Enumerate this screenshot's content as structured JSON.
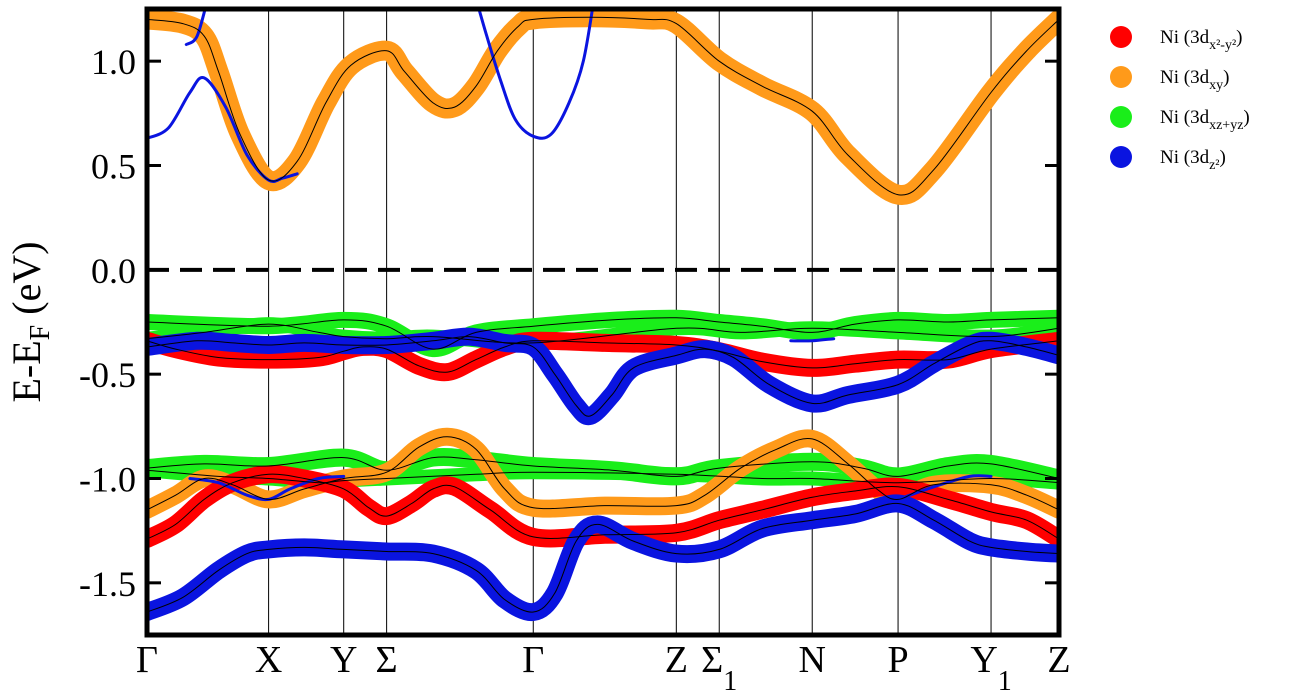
{
  "chart_data": {
    "type": "line",
    "ylabel": "E-E_F (eV)",
    "ylabel_parts": {
      "main": "E-E",
      "sub": "F",
      "tail": " (eV)"
    },
    "ylim": [
      -1.75,
      1.25
    ],
    "xlim": [
      0,
      12.75
    ],
    "yticks": [
      1.0,
      0.5,
      0.0,
      -0.5,
      -1.0,
      -1.5
    ],
    "ytick_labels": [
      "1.0",
      "0.5",
      "0.0",
      "-0.5",
      "-1.0",
      "-1.5"
    ],
    "kpoints": [
      {
        "x": 0.0,
        "label": "Γ",
        "sub": ""
      },
      {
        "x": 1.7,
        "label": "X",
        "sub": ""
      },
      {
        "x": 2.75,
        "label": "Y",
        "sub": ""
      },
      {
        "x": 3.35,
        "label": "Σ",
        "sub": ""
      },
      {
        "x": 5.4,
        "label": "Γ",
        "sub": ""
      },
      {
        "x": 7.4,
        "label": "Z",
        "sub": ""
      },
      {
        "x": 8.0,
        "label": "Σ",
        "sub": "1"
      },
      {
        "x": 9.3,
        "label": "N",
        "sub": ""
      },
      {
        "x": 10.5,
        "label": "P",
        "sub": ""
      },
      {
        "x": 11.8,
        "label": "Y",
        "sub": "1"
      },
      {
        "x": 12.75,
        "label": "Z",
        "sub": ""
      }
    ],
    "fermi_level": 0.0,
    "fermi_style": "dashed",
    "legend_position": "outside-right",
    "series": [
      {
        "name": "Ni (3dx²-y²)",
        "color": "#ff0000",
        "legend": {
          "pre": "Ni (3d",
          "sub": "x²-y²",
          "post": ")"
        }
      },
      {
        "name": "Ni (3dxy)",
        "color": "#ff9a1a",
        "legend": {
          "pre": "Ni (3d",
          "sub": "xy",
          "post": ")"
        }
      },
      {
        "name": "Ni (3dxz+yz)",
        "color": "#1aee1a",
        "legend": {
          "pre": "Ni (3d",
          "sub": "xz+yz",
          "post": ")"
        }
      },
      {
        "name": "Ni (3dz²)",
        "color": "#0a14e0",
        "legend": {
          "pre": "Ni (3d",
          "sub": "z²",
          "post": ")"
        }
      }
    ],
    "bands": [
      {
        "color": "#ff9a1a",
        "width": 20,
        "points": [
          [
            0,
            1.2
          ],
          [
            0.5,
            1.18
          ],
          [
            0.8,
            1.12
          ],
          [
            1.0,
            0.95
          ],
          [
            1.3,
            0.65
          ],
          [
            1.7,
            0.43
          ],
          [
            2.1,
            0.52
          ],
          [
            2.5,
            0.8
          ],
          [
            2.85,
            0.98
          ],
          [
            3.35,
            1.05
          ],
          [
            3.6,
            0.95
          ],
          [
            4.0,
            0.8
          ],
          [
            4.3,
            0.78
          ],
          [
            4.6,
            0.88
          ],
          [
            4.9,
            1.05
          ],
          [
            5.2,
            1.17
          ],
          [
            5.4,
            1.2
          ],
          [
            6.2,
            1.21
          ],
          [
            7.0,
            1.2
          ],
          [
            7.4,
            1.18
          ],
          [
            8.0,
            1.0
          ],
          [
            8.6,
            0.88
          ],
          [
            9.3,
            0.76
          ],
          [
            9.8,
            0.55
          ],
          [
            10.5,
            0.36
          ],
          [
            11.0,
            0.48
          ],
          [
            11.8,
            0.85
          ],
          [
            12.3,
            1.05
          ],
          [
            12.75,
            1.2
          ]
        ]
      },
      {
        "color": "#0a14e0",
        "width": 3,
        "points": [
          [
            0,
            0.63
          ],
          [
            0.3,
            0.68
          ],
          [
            0.6,
            0.85
          ],
          [
            0.8,
            0.92
          ],
          [
            1.1,
            0.78
          ],
          [
            1.4,
            0.55
          ],
          [
            1.7,
            0.43
          ],
          [
            1.9,
            0.44
          ],
          [
            2.1,
            0.46
          ]
        ]
      },
      {
        "color": "#0a14e0",
        "width": 3,
        "points": [
          [
            0.55,
            1.08
          ],
          [
            0.7,
            1.12
          ],
          [
            0.85,
            1.3
          ]
        ]
      },
      {
        "color": "#0a14e0",
        "width": 3,
        "points": [
          [
            4.6,
            1.3
          ],
          [
            4.75,
            1.12
          ],
          [
            4.95,
            0.9
          ],
          [
            5.15,
            0.72
          ],
          [
            5.4,
            0.64
          ],
          [
            5.65,
            0.65
          ],
          [
            5.9,
            0.8
          ],
          [
            6.1,
            1.0
          ],
          [
            6.25,
            1.3
          ]
        ]
      },
      {
        "color": "#1aee1a",
        "width": 16,
        "points": [
          [
            0,
            -0.25
          ],
          [
            1.7,
            -0.27
          ],
          [
            2.75,
            -0.24
          ],
          [
            3.35,
            -0.27
          ],
          [
            4.0,
            -0.38
          ],
          [
            4.6,
            -0.3
          ],
          [
            5.4,
            -0.27
          ],
          [
            6.5,
            -0.24
          ],
          [
            7.4,
            -0.23
          ],
          [
            8.0,
            -0.25
          ],
          [
            8.6,
            -0.27
          ],
          [
            9.3,
            -0.3
          ],
          [
            9.9,
            -0.26
          ],
          [
            10.5,
            -0.24
          ],
          [
            11.2,
            -0.25
          ],
          [
            11.8,
            -0.24
          ],
          [
            12.75,
            -0.23
          ]
        ]
      },
      {
        "color": "#1aee1a",
        "width": 14,
        "points": [
          [
            0,
            -0.33
          ],
          [
            0.8,
            -0.3
          ],
          [
            1.7,
            -0.26
          ],
          [
            2.4,
            -0.3
          ],
          [
            2.75,
            -0.32
          ],
          [
            3.35,
            -0.33
          ],
          [
            4.0,
            -0.32
          ],
          [
            5.4,
            -0.35
          ],
          [
            7.4,
            -0.28
          ],
          [
            8.3,
            -0.3
          ],
          [
            9.3,
            -0.28
          ],
          [
            10.5,
            -0.3
          ],
          [
            11.8,
            -0.32
          ],
          [
            12.75,
            -0.28
          ]
        ]
      },
      {
        "color": "#ff0000",
        "width": 18,
        "points": [
          [
            0,
            -0.34
          ],
          [
            0.4,
            -0.38
          ],
          [
            1.0,
            -0.42
          ],
          [
            1.7,
            -0.43
          ],
          [
            2.4,
            -0.42
          ],
          [
            2.75,
            -0.39
          ],
          [
            3.0,
            -0.37
          ],
          [
            3.35,
            -0.38
          ],
          [
            3.8,
            -0.46
          ],
          [
            4.2,
            -0.49
          ],
          [
            4.6,
            -0.43
          ],
          [
            5.0,
            -0.37
          ],
          [
            5.4,
            -0.34
          ],
          [
            6.4,
            -0.35
          ],
          [
            7.4,
            -0.36
          ],
          [
            8.0,
            -0.39
          ],
          [
            8.6,
            -0.44
          ],
          [
            9.3,
            -0.47
          ],
          [
            9.9,
            -0.45
          ],
          [
            10.5,
            -0.43
          ],
          [
            11.2,
            -0.43
          ],
          [
            11.8,
            -0.38
          ],
          [
            12.75,
            -0.34
          ]
        ]
      },
      {
        "color": "#0a14e0",
        "width": 18,
        "points": [
          [
            0,
            -0.37
          ],
          [
            0.7,
            -0.34
          ],
          [
            1.2,
            -0.35
          ],
          [
            1.7,
            -0.36
          ],
          [
            2.2,
            -0.35
          ],
          [
            2.75,
            -0.36
          ],
          [
            3.35,
            -0.36
          ],
          [
            4.0,
            -0.34
          ],
          [
            4.5,
            -0.32
          ],
          [
            5.0,
            -0.35
          ],
          [
            5.4,
            -0.37
          ],
          [
            5.7,
            -0.5
          ],
          [
            6.0,
            -0.65
          ],
          [
            6.2,
            -0.7
          ],
          [
            6.5,
            -0.6
          ],
          [
            6.8,
            -0.47
          ],
          [
            7.4,
            -0.41
          ],
          [
            7.8,
            -0.38
          ],
          [
            8.2,
            -0.42
          ],
          [
            8.7,
            -0.55
          ],
          [
            9.3,
            -0.64
          ],
          [
            9.8,
            -0.6
          ],
          [
            10.5,
            -0.55
          ],
          [
            11.0,
            -0.45
          ],
          [
            11.5,
            -0.36
          ],
          [
            11.8,
            -0.34
          ],
          [
            12.3,
            -0.37
          ],
          [
            12.75,
            -0.41
          ]
        ]
      },
      {
        "color": "#1aee1a",
        "width": 18,
        "points": [
          [
            0,
            -0.95
          ],
          [
            0.8,
            -0.93
          ],
          [
            1.7,
            -0.94
          ],
          [
            2.75,
            -0.9
          ],
          [
            3.35,
            -0.96
          ],
          [
            4.0,
            -0.9
          ],
          [
            4.6,
            -0.91
          ],
          [
            5.4,
            -0.94
          ],
          [
            6.5,
            -0.96
          ],
          [
            7.4,
            -0.99
          ],
          [
            8.0,
            -0.95
          ],
          [
            9.3,
            -0.92
          ],
          [
            10.0,
            -0.95
          ],
          [
            10.5,
            -0.99
          ],
          [
            11.2,
            -0.94
          ],
          [
            11.8,
            -0.93
          ],
          [
            12.75,
            -1.0
          ]
        ]
      },
      {
        "color": "#1aee1a",
        "width": 14,
        "points": [
          [
            0,
            -0.96
          ],
          [
            1.0,
            -0.99
          ],
          [
            1.7,
            -1.0
          ],
          [
            2.4,
            -1.02
          ],
          [
            2.75,
            -1.01
          ],
          [
            3.35,
            -1.0
          ],
          [
            4.6,
            -0.98
          ],
          [
            5.4,
            -0.97
          ],
          [
            7.4,
            -0.98
          ],
          [
            8.6,
            -1.0
          ],
          [
            9.3,
            -1.0
          ],
          [
            10.5,
            -1.02
          ],
          [
            11.8,
            -1.0
          ],
          [
            12.75,
            -1.02
          ]
        ]
      },
      {
        "color": "#ff9a1a",
        "width": 18,
        "points": [
          [
            0,
            -1.15
          ],
          [
            0.4,
            -1.08
          ],
          [
            0.8,
            -1.0
          ],
          [
            1.2,
            -1.03
          ],
          [
            1.7,
            -1.1
          ],
          [
            2.2,
            -1.05
          ],
          [
            2.75,
            -1.0
          ],
          [
            3.35,
            -0.97
          ],
          [
            3.8,
            -0.85
          ],
          [
            4.2,
            -0.8
          ],
          [
            4.6,
            -0.86
          ],
          [
            5.0,
            -1.05
          ],
          [
            5.4,
            -1.14
          ],
          [
            6.4,
            -1.13
          ],
          [
            7.4,
            -1.13
          ],
          [
            7.8,
            -1.08
          ],
          [
            8.3,
            -0.95
          ],
          [
            8.8,
            -0.86
          ],
          [
            9.3,
            -0.81
          ],
          [
            9.8,
            -0.93
          ],
          [
            10.2,
            -1.05
          ],
          [
            10.5,
            -1.1
          ],
          [
            11.0,
            -1.03
          ],
          [
            11.8,
            -1.03
          ],
          [
            12.3,
            -1.08
          ],
          [
            12.75,
            -1.15
          ]
        ]
      },
      {
        "color": "#ff0000",
        "width": 18,
        "points": [
          [
            0,
            -1.29
          ],
          [
            0.4,
            -1.22
          ],
          [
            0.8,
            -1.1
          ],
          [
            1.2,
            -1.02
          ],
          [
            1.7,
            -0.98
          ],
          [
            2.2,
            -1.0
          ],
          [
            2.75,
            -1.05
          ],
          [
            3.1,
            -1.14
          ],
          [
            3.35,
            -1.18
          ],
          [
            3.7,
            -1.12
          ],
          [
            4.0,
            -1.05
          ],
          [
            4.3,
            -1.04
          ],
          [
            4.8,
            -1.15
          ],
          [
            5.4,
            -1.28
          ],
          [
            6.4,
            -1.27
          ],
          [
            7.4,
            -1.26
          ],
          [
            8.0,
            -1.2
          ],
          [
            8.6,
            -1.15
          ],
          [
            9.3,
            -1.09
          ],
          [
            9.9,
            -1.06
          ],
          [
            10.5,
            -1.04
          ],
          [
            11.2,
            -1.1
          ],
          [
            11.8,
            -1.16
          ],
          [
            12.3,
            -1.2
          ],
          [
            12.75,
            -1.29
          ]
        ]
      },
      {
        "color": "#0a14e0",
        "width": 18,
        "points": [
          [
            0,
            -1.64
          ],
          [
            0.5,
            -1.57
          ],
          [
            1.0,
            -1.44
          ],
          [
            1.4,
            -1.36
          ],
          [
            1.7,
            -1.34
          ],
          [
            2.2,
            -1.33
          ],
          [
            2.75,
            -1.34
          ],
          [
            3.35,
            -1.35
          ],
          [
            4.0,
            -1.36
          ],
          [
            4.6,
            -1.44
          ],
          [
            5.0,
            -1.58
          ],
          [
            5.4,
            -1.64
          ],
          [
            5.7,
            -1.55
          ],
          [
            6.0,
            -1.3
          ],
          [
            6.3,
            -1.22
          ],
          [
            6.8,
            -1.3
          ],
          [
            7.4,
            -1.36
          ],
          [
            8.0,
            -1.34
          ],
          [
            8.6,
            -1.24
          ],
          [
            9.3,
            -1.2
          ],
          [
            9.9,
            -1.17
          ],
          [
            10.5,
            -1.12
          ],
          [
            11.0,
            -1.2
          ],
          [
            11.5,
            -1.3
          ],
          [
            11.8,
            -1.33
          ],
          [
            12.3,
            -1.35
          ],
          [
            12.75,
            -1.36
          ]
        ]
      },
      {
        "color": "#0a14e0",
        "width": 3,
        "points": [
          [
            0.6,
            -1.0
          ],
          [
            1.0,
            -1.02
          ],
          [
            1.4,
            -1.08
          ],
          [
            1.7,
            -1.1
          ],
          [
            2.0,
            -1.05
          ],
          [
            2.4,
            -1.0
          ],
          [
            2.75,
            -0.99
          ]
        ]
      },
      {
        "color": "#0a14e0",
        "width": 3,
        "points": [
          [
            10.5,
            -1.1
          ],
          [
            11.0,
            -1.04
          ],
          [
            11.5,
            -0.99
          ],
          [
            11.8,
            -0.99
          ]
        ]
      },
      {
        "color": "#0a14e0",
        "width": 3,
        "points": [
          [
            9.0,
            -0.34
          ],
          [
            9.3,
            -0.34
          ],
          [
            9.6,
            -0.33
          ]
        ]
      }
    ]
  }
}
